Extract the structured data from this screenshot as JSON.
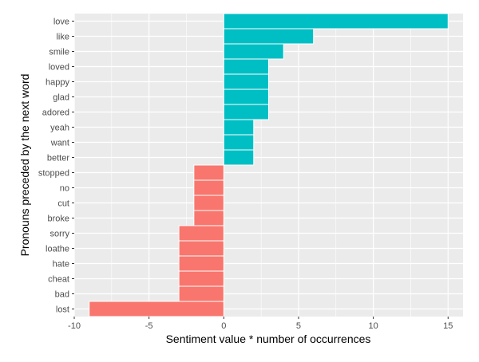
{
  "chart_data": {
    "type": "bar",
    "orientation": "horizontal",
    "categories": [
      "love",
      "like",
      "smile",
      "loved",
      "happy",
      "glad",
      "adored",
      "yeah",
      "want",
      "better",
      "stopped",
      "no",
      "cut",
      "broke",
      "sorry",
      "loathe",
      "hate",
      "cheat",
      "bad",
      "lost"
    ],
    "values": [
      15,
      6,
      4,
      3,
      3,
      3,
      3,
      2,
      2,
      2,
      -2,
      -2,
      -2,
      -2,
      -3,
      -3,
      -3,
      -3,
      -3,
      -9
    ],
    "xlabel": "Sentiment value * number of occurrences",
    "ylabel": "Pronouns preceded by the next word",
    "xlim": [
      -10,
      16
    ],
    "xticks": [
      -10,
      -5,
      0,
      5,
      10,
      15
    ],
    "xtick_labels": [
      "-10",
      "-5",
      "0",
      "5",
      "10",
      "15"
    ],
    "grid": true,
    "legend": "none",
    "colors": {
      "positive": "#00BFC4",
      "negative": "#F8766D",
      "panel": "#EBEBEB",
      "grid": "#FFFFFF"
    }
  }
}
